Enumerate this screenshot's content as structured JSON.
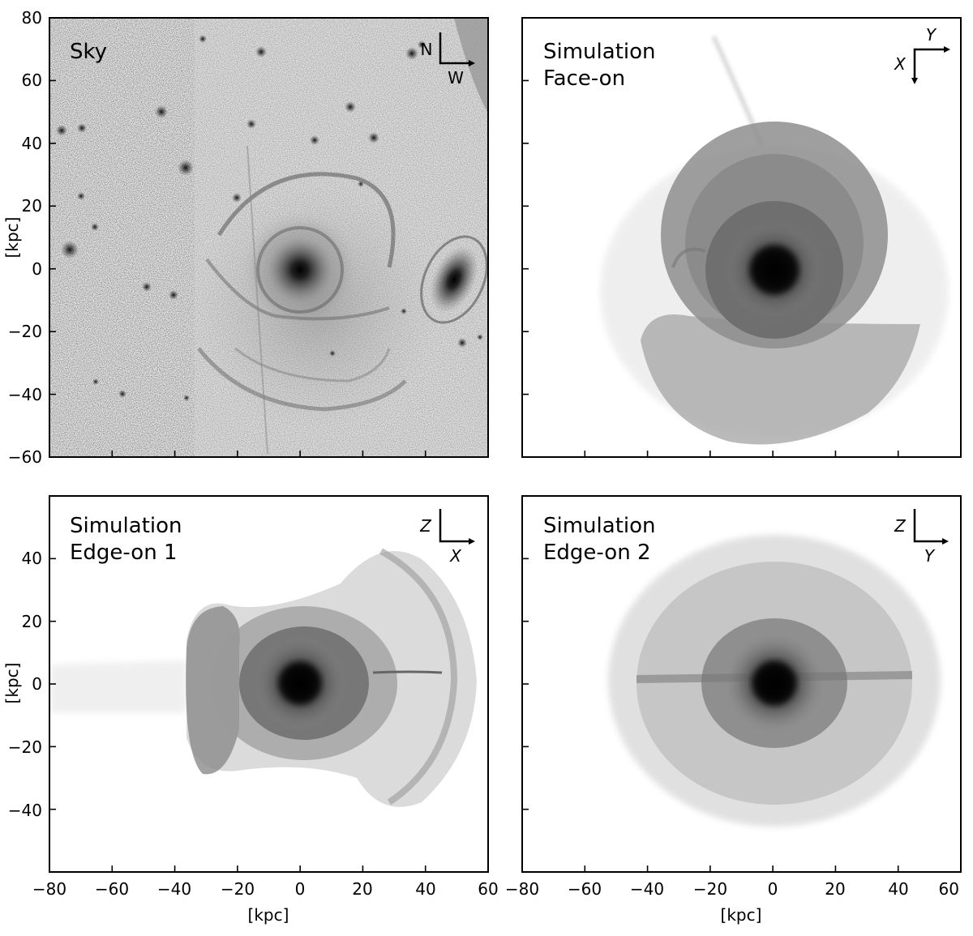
{
  "figure": {
    "panels": [
      {
        "id": "sky",
        "title_lines": [
          "Sky"
        ],
        "compass": {
          "up": "N",
          "side": "W",
          "italic": false
        },
        "x_ticks": [
          -80,
          -60,
          -40,
          -20,
          0,
          20,
          40,
          60
        ],
        "y_ticks": [
          "80",
          "60",
          "40",
          "20",
          "0",
          "−20",
          "−40",
          "−60"
        ],
        "y_label": "[kpc]",
        "show_x_labels": false,
        "show_y_labels": true
      },
      {
        "id": "face-on",
        "title_lines": [
          "Simulation",
          "Face-on"
        ],
        "compass": {
          "up": "Y",
          "side": "X",
          "italic": true
        },
        "x_ticks": [
          -80,
          -60,
          -40,
          -20,
          0,
          20,
          40,
          60
        ],
        "y_ticks": [
          "80",
          "60",
          "40",
          "20",
          "0",
          "−20",
          "−40",
          "−60"
        ],
        "y_label": "",
        "show_x_labels": false,
        "show_y_labels": false
      },
      {
        "id": "edge-on-1",
        "title_lines": [
          "Simulation",
          "Edge-on 1"
        ],
        "compass": {
          "up": "Z",
          "side": "X",
          "italic": true
        },
        "x_ticks": [
          -80,
          -60,
          -40,
          -20,
          0,
          20,
          40,
          60
        ],
        "y_ticks": [
          "40",
          "20",
          "0",
          "−20",
          "−40"
        ],
        "y_label": "[kpc]",
        "x_label": "[kpc]",
        "show_x_labels": true,
        "show_y_labels": true
      },
      {
        "id": "edge-on-2",
        "title_lines": [
          "Simulation",
          "Edge-on 2"
        ],
        "compass": {
          "up": "Z",
          "side": "Y",
          "italic": true
        },
        "x_ticks": [
          -80,
          -60,
          -40,
          -20,
          0,
          20,
          40,
          60
        ],
        "y_ticks": [
          "40",
          "20",
          "0",
          "−20",
          "−40"
        ],
        "y_label": "",
        "x_label": "[kpc]",
        "show_x_labels": true,
        "show_y_labels": false
      }
    ],
    "x_tick_labels": [
      "−80",
      "−60",
      "−40",
      "−20",
      "0",
      "20",
      "40",
      "60"
    ]
  }
}
